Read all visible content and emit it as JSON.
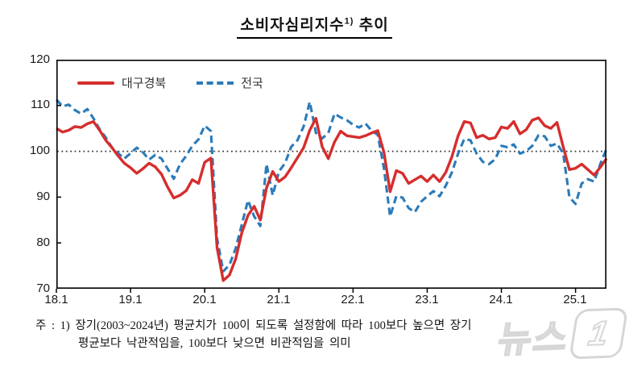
{
  "title": {
    "main": "소비자심리지수",
    "sup": "1)",
    "tail": " 추이"
  },
  "legend": [
    {
      "label": "대구경북",
      "color": "#d62d2d",
      "style": "solid"
    },
    {
      "label": "전국",
      "color": "#2b7bb9",
      "style": "dashed"
    }
  ],
  "footnote": {
    "line1": "주 : 1) 장기(2003~2024년) 평균치가 100이 되도록 설정함에 따라 100보다 높으면 장기",
    "line2": "평균보다 낙관적임을, 100보다 낮으면 비관적임을 의미"
  },
  "watermark": {
    "text": "뉴스",
    "badge": "1"
  },
  "chart_data": {
    "type": "line",
    "title": "소비자심리지수1) 추이",
    "frequency": "monthly",
    "x_start": "2018-01",
    "x_end": "2025-06",
    "x_tick_labels": [
      "18.1",
      "19.1",
      "20.1",
      "21.1",
      "22.1",
      "23.1",
      "24.1",
      "25.1"
    ],
    "y_tick_labels": [
      "120",
      "110",
      "100",
      "90",
      "80",
      "70"
    ],
    "ylim": [
      70,
      120
    ],
    "reference_line": 100,
    "grid": false,
    "legend_position": "top-left",
    "series": [
      {
        "name": "대구경북",
        "color": "#d62d2d",
        "line_style": "solid",
        "values": [
          105.0,
          104.2,
          104.6,
          105.4,
          105.2,
          106.0,
          106.5,
          104.6,
          102.4,
          100.8,
          99.0,
          97.4,
          96.4,
          95.2,
          96.2,
          97.4,
          96.6,
          95.0,
          92.2,
          89.8,
          90.4,
          91.4,
          93.8,
          93.0,
          97.6,
          98.5,
          79.0,
          71.8,
          73.0,
          76.5,
          82.2,
          86.0,
          88.0,
          85.0,
          92.0,
          95.6,
          93.4,
          94.4,
          96.4,
          98.6,
          100.8,
          104.6,
          107.2,
          101.0,
          98.4,
          102.0,
          104.4,
          103.4,
          103.2,
          103.0,
          103.4,
          104.0,
          104.5,
          99.8,
          91.2,
          95.8,
          95.2,
          93.0,
          93.8,
          94.6,
          93.4,
          94.8,
          93.4,
          95.4,
          98.8,
          103.4,
          106.5,
          106.2,
          103.0,
          103.5,
          102.7,
          103.0,
          105.3,
          105.0,
          106.5,
          103.8,
          104.7,
          106.8,
          107.3,
          105.6,
          105.0,
          106.3,
          101.0,
          96.0,
          96.3,
          97.2,
          96.0,
          94.8,
          96.5,
          98.4
        ]
      },
      {
        "name": "전국",
        "color": "#2b7bb9",
        "line_style": "dashed",
        "values": [
          111.3,
          109.8,
          110.2,
          109.0,
          108.2,
          109.2,
          107.2,
          104.8,
          103.0,
          100.8,
          99.6,
          98.4,
          99.6,
          100.8,
          99.8,
          98.2,
          99.2,
          98.4,
          96.2,
          94.0,
          97.2,
          99.0,
          101.2,
          102.6,
          105.6,
          104.4,
          81.0,
          73.8,
          75.2,
          78.8,
          84.0,
          89.3,
          85.8,
          83.7,
          97.2,
          90.4,
          95.6,
          97.4,
          101.0,
          102.4,
          105.4,
          110.8,
          104.0,
          102.8,
          104.0,
          108.2,
          107.4,
          106.8,
          105.8,
          105.2,
          106.1,
          104.5,
          103.6,
          96.3,
          85.8,
          90.2,
          89.9,
          87.6,
          86.7,
          89.0,
          90.2,
          91.3,
          90.2,
          92.5,
          95.4,
          99.5,
          102.7,
          102.4,
          99.5,
          97.7,
          97.2,
          98.3,
          101.2,
          100.9,
          101.5,
          99.5,
          100.0,
          101.2,
          103.5,
          103.3,
          101.2,
          101.7,
          99.5,
          90.0,
          88.5,
          93.0,
          93.9,
          93.4,
          97.2,
          100.5
        ]
      }
    ]
  }
}
